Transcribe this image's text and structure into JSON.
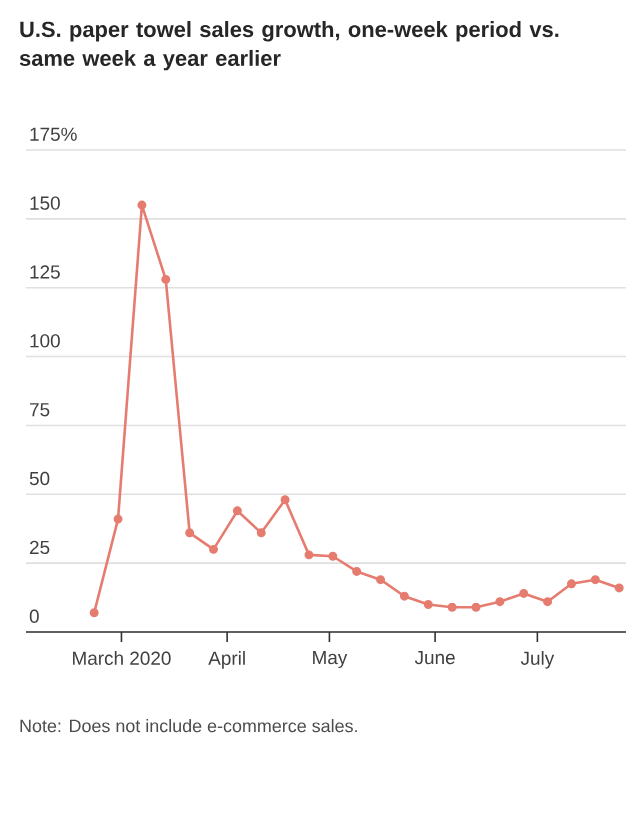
{
  "chart_data": {
    "type": "line",
    "title": "U.S. paper towel sales growth, one-week period vs. same week a year earlier",
    "annotations": [
      "Note: Does not include e-commerce sales."
    ],
    "x": [
      "2020-02-22",
      "2020-02-29",
      "2020-03-07",
      "2020-03-14",
      "2020-03-21",
      "2020-03-28",
      "2020-04-04",
      "2020-04-11",
      "2020-04-18",
      "2020-04-25",
      "2020-05-02",
      "2020-05-09",
      "2020-05-16",
      "2020-05-23",
      "2020-05-30",
      "2020-06-06",
      "2020-06-13",
      "2020-06-20",
      "2020-06-27",
      "2020-07-04",
      "2020-07-11",
      "2020-07-18",
      "2020-07-25"
    ],
    "series": [
      {
        "color": "#e57c6f",
        "values": [
          7,
          41,
          155,
          128,
          36,
          30,
          44,
          36,
          48,
          28,
          27.5,
          22,
          19,
          13,
          10,
          9,
          9,
          11,
          14,
          11,
          17.5,
          19,
          16
        ]
      }
    ],
    "xlim": [
      "2020-02-02",
      "2020-07-27"
    ],
    "ylim": [
      0,
      175
    ],
    "xticks": [
      {
        "value": "2020-03-01",
        "label": "March 2020"
      },
      {
        "value": "2020-04-01",
        "label": "April"
      },
      {
        "value": "2020-05-01",
        "label": "May"
      },
      {
        "value": "2020-06-01",
        "label": "June"
      },
      {
        "value": "2020-07-01",
        "label": "July"
      }
    ],
    "yticks": [
      0,
      25,
      50,
      75,
      100,
      125,
      150,
      {
        "value": 175,
        "label": "175%"
      }
    ],
    "grid": "y",
    "marker": "circle",
    "line_style": "solid"
  }
}
